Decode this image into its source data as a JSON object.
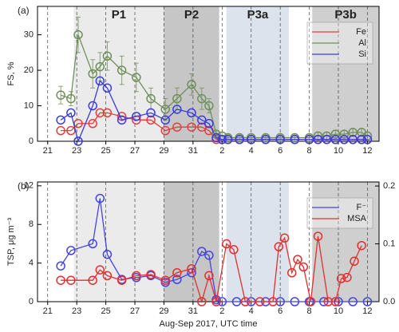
{
  "chart_data": [
    {
      "type": "line",
      "panel_label": "(a)",
      "ylabel": "FS, %",
      "xlim": [
        20.3,
        43.8
      ],
      "xticks": [
        21,
        23,
        25,
        27,
        29,
        31,
        {
          "value": 33,
          "label": "2"
        },
        {
          "value": 35,
          "label": "4"
        },
        {
          "value": 37,
          "label": "6"
        },
        {
          "value": 39,
          "label": "8"
        },
        {
          "value": 41,
          "label": "10"
        },
        {
          "value": 43,
          "label": "12"
        }
      ],
      "ylim": [
        0,
        38
      ],
      "yticks": [
        0,
        10,
        20,
        30
      ],
      "grid": true,
      "legend": "upper right",
      "periods": [
        {
          "label": "P1",
          "start": 22.8,
          "end": 29.0,
          "color": "#ebebeb"
        },
        {
          "label": "P2",
          "start": 29.0,
          "end": 32.8,
          "color": "#c6c6c6"
        },
        {
          "label": "P3a",
          "start": 33.3,
          "end": 37.6,
          "color": "#dde3ec"
        },
        {
          "label": "P3b",
          "start": 39.2,
          "end": 43.8,
          "color": "#cfcfcf"
        }
      ],
      "x": [
        21.9,
        22.6,
        23.1,
        24.1,
        24.6,
        25.1,
        26.1,
        27.1,
        28.1,
        29.1,
        29.9,
        30.9,
        31.6,
        32.1,
        32.6,
        33.0,
        33.4,
        34.2,
        35.0,
        36.0,
        37.0,
        38.0,
        39.0,
        39.6,
        40.2,
        40.8,
        41.4,
        42.0,
        42.6,
        43.0
      ],
      "series": [
        {
          "name": "Fe",
          "color": "#e04040",
          "values": [
            3,
            3,
            5,
            5,
            8,
            8,
            7,
            6,
            6,
            3,
            4,
            4,
            4,
            3,
            0.5,
            0.5,
            0.5,
            0.5,
            0.5,
            0.5,
            0.5,
            0.5,
            0.5,
            0.5,
            0.5,
            0.5,
            0.5,
            0.5,
            0.5,
            0.5
          ]
        },
        {
          "name": "Al",
          "color": "#6f8f5c",
          "values": [
            13,
            12,
            30,
            19,
            21,
            24,
            20,
            18,
            12,
            9,
            12,
            16,
            12,
            10,
            2,
            1.5,
            1,
            1,
            1,
            1,
            1,
            1,
            1,
            1.5,
            1.5,
            2,
            2,
            2.5,
            2.5,
            1.5
          ],
          "errors": [
            2.5,
            2,
            5,
            4,
            4,
            4,
            4,
            4,
            3,
            3,
            3,
            3,
            3,
            2,
            1,
            1,
            1,
            1,
            1,
            1,
            1,
            1,
            1,
            1,
            1,
            1,
            1,
            1,
            1,
            1
          ]
        },
        {
          "name": "Si",
          "color": "#3b3be0",
          "values": [
            6,
            8,
            0,
            10,
            17,
            15,
            6,
            7,
            8,
            6,
            9,
            8,
            6,
            5,
            1,
            0.5,
            0.5,
            0.5,
            0.5,
            0.5,
            0.5,
            0.5,
            0.5,
            0.5,
            0.5,
            0.5,
            0.5,
            0.5,
            0.5,
            0.5
          ]
        }
      ]
    },
    {
      "type": "line",
      "panel_label": "(b)",
      "ylabel": "TSP, μg m⁻³",
      "xlabel": "Aug-Sep 2017, UTC time",
      "xlim": [
        20.3,
        43.8
      ],
      "xticks": [
        21,
        23,
        25,
        27,
        29,
        31,
        {
          "value": 33,
          "label": "2"
        },
        {
          "value": 35,
          "label": "4"
        },
        {
          "value": 37,
          "label": "6"
        },
        {
          "value": 39,
          "label": "8"
        },
        {
          "value": 41,
          "label": "10"
        },
        {
          "value": 43,
          "label": "12"
        }
      ],
      "ylim": [
        0,
        12.4
      ],
      "yticks": [
        0,
        4,
        8,
        12
      ],
      "y2lim": [
        0,
        0.207
      ],
      "y2ticks": [
        {
          "value": 0,
          "label": "0.0"
        },
        0.1,
        0.2
      ],
      "grid": true,
      "legend": "upper right",
      "periods": [
        {
          "start": 22.8,
          "end": 29.0,
          "color": "#ebebeb"
        },
        {
          "start": 29.0,
          "end": 32.8,
          "color": "#c6c6c6"
        },
        {
          "start": 33.3,
          "end": 37.6,
          "color": "#dde3ec"
        },
        {
          "start": 39.2,
          "end": 43.8,
          "color": "#cfcfcf"
        }
      ],
      "series": [
        {
          "name": "F⁻",
          "color": "#4444e0",
          "x": [
            21.9,
            22.6,
            24.1,
            24.6,
            25.1,
            26.1,
            27.1,
            28.1,
            29.1,
            29.9,
            30.9,
            31.6,
            32.1,
            32.6,
            33.0,
            34.0,
            35.0,
            36.0,
            37.0,
            38.0,
            39.0,
            40.0,
            41.0,
            42.0,
            43.0
          ],
          "values": [
            3.7,
            5.3,
            6.0,
            10.7,
            4.9,
            2.3,
            2.5,
            2.7,
            2.0,
            2.3,
            3.0,
            5.2,
            4.8,
            0.2,
            0,
            0,
            0,
            0,
            0,
            0,
            0,
            0,
            0,
            0,
            0
          ]
        },
        {
          "name": "MSA",
          "color": "#e03030",
          "axis": "y2",
          "x": [
            21.9,
            22.6,
            24.1,
            24.6,
            25.1,
            26.1,
            27.1,
            28.1,
            29.1,
            29.9,
            30.9,
            31.6,
            32.1,
            32.6,
            33.3,
            33.8,
            34.6,
            35.6,
            36.5,
            36.9,
            37.3,
            37.8,
            38.2,
            38.6,
            39.1,
            39.6,
            40.3,
            40.8,
            41.2,
            41.6,
            42.1,
            42.6
          ],
          "values": [
            0.037,
            0.037,
            0.037,
            0.055,
            0.045,
            0.037,
            0.045,
            0.047,
            0.037,
            0.05,
            0.057,
            0,
            0.045,
            0,
            0.1,
            0.09,
            0,
            0,
            0,
            0.095,
            0.11,
            0.05,
            0.073,
            0.06,
            0,
            0.113,
            0,
            0,
            0.04,
            0.042,
            0.07,
            0.097
          ]
        }
      ]
    }
  ]
}
